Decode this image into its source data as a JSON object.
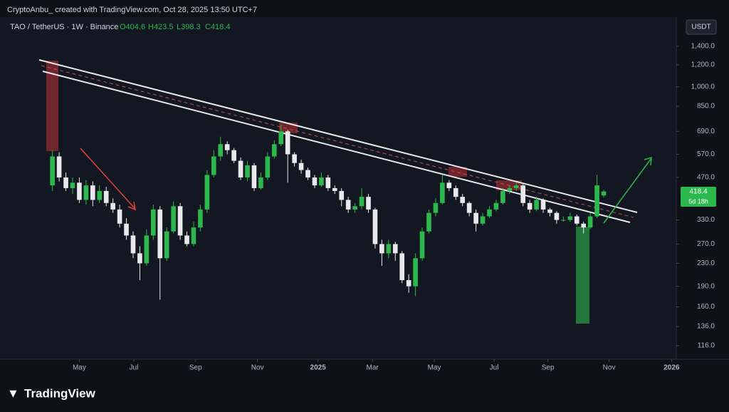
{
  "header": "CryptoAnbu_ created with TradingView.com, Oct 28, 2025 13:50 UTC+7",
  "footer_logo": "TradingView",
  "chart_data": {
    "type": "candlestick",
    "title": "TAO / TetherUS · 1W · Binance",
    "ohlc_legend": [
      "O404.6",
      "H423.5",
      "L398.3",
      "C418.4"
    ],
    "currency": "USDT",
    "price_tag": "418.4",
    "countdown": "5d 18h",
    "log_scale": true,
    "grid": false,
    "up_color": "#2db84d",
    "down_color": "#e9e9ec",
    "ylim": [
      106,
      1775
    ],
    "yticks": [
      {
        "value": 116,
        "label": "116.0"
      },
      {
        "value": 136,
        "label": "136.0"
      },
      {
        "value": 160,
        "label": "160.0"
      },
      {
        "value": 190,
        "label": "190.0"
      },
      {
        "value": 230,
        "label": "230.0"
      },
      {
        "value": 270,
        "label": "270.0"
      },
      {
        "value": 330,
        "label": "330.0"
      },
      {
        "value": 470,
        "label": "470.0"
      },
      {
        "value": 570,
        "label": "570.0"
      },
      {
        "value": 690,
        "label": "690.0"
      },
      {
        "value": 850,
        "label": "850.0"
      },
      {
        "value": 1000,
        "label": "1,000.0"
      },
      {
        "value": 1200,
        "label": "1,200.0"
      },
      {
        "value": 1400,
        "label": "1,400.0"
      }
    ],
    "xlim": [
      -7.8,
      92.8
    ],
    "xticks": [
      {
        "value": 4.0,
        "label": "May"
      },
      {
        "value": 12.1,
        "label": "Jul"
      },
      {
        "value": 21.3,
        "label": "Sep"
      },
      {
        "value": 30.5,
        "label": "Nov"
      },
      {
        "value": 39.5,
        "label": "2025"
      },
      {
        "value": 47.6,
        "label": "Mar"
      },
      {
        "value": 56.8,
        "label": "May"
      },
      {
        "value": 65.7,
        "label": "Jul"
      },
      {
        "value": 73.7,
        "label": "Sep"
      },
      {
        "value": 82.8,
        "label": "Nov"
      },
      {
        "value": 92.1,
        "label": "2026"
      }
    ],
    "open": [
      440,
      560,
      470,
      430,
      450,
      390,
      440,
      390,
      420,
      380,
      360,
      320,
      290,
      250,
      230,
      290,
      360,
      240,
      300,
      370,
      290,
      270,
      310,
      360,
      480,
      560,
      620,
      590,
      540,
      470,
      520,
      430,
      470,
      560,
      620,
      690,
      570,
      530,
      500,
      470,
      440,
      470,
      430,
      420,
      390,
      360,
      370,
      400,
      360,
      270,
      250,
      270,
      250,
      200,
      190,
      240,
      300,
      350,
      380,
      450,
      430,
      400,
      380,
      350,
      320,
      340,
      360,
      380,
      420,
      430,
      440,
      380,
      360,
      390,
      360,
      350,
      330,
      330,
      340,
      320,
      310,
      340,
      404.6
    ],
    "high": [
      590,
      580,
      490,
      470,
      470,
      460,
      455,
      440,
      435,
      395,
      375,
      335,
      300,
      265,
      305,
      375,
      370,
      310,
      385,
      380,
      300,
      325,
      375,
      500,
      590,
      660,
      635,
      600,
      555,
      540,
      530,
      490,
      580,
      640,
      730,
      700,
      580,
      545,
      510,
      480,
      490,
      480,
      440,
      430,
      400,
      380,
      430,
      410,
      365,
      280,
      280,
      275,
      255,
      210,
      250,
      310,
      360,
      395,
      480,
      460,
      440,
      410,
      385,
      360,
      350,
      370,
      390,
      430,
      440,
      450,
      445,
      390,
      400,
      395,
      365,
      355,
      340,
      350,
      345,
      325,
      350,
      480,
      423.5
    ],
    "low": [
      420,
      455,
      420,
      410,
      380,
      375,
      370,
      380,
      370,
      350,
      310,
      280,
      240,
      200,
      225,
      280,
      170,
      235,
      295,
      280,
      265,
      265,
      300,
      350,
      470,
      540,
      570,
      530,
      460,
      455,
      420,
      425,
      460,
      550,
      610,
      450,
      515,
      485,
      460,
      430,
      435,
      420,
      410,
      370,
      350,
      350,
      360,
      350,
      260,
      225,
      240,
      235,
      195,
      180,
      175,
      235,
      295,
      340,
      375,
      420,
      390,
      370,
      340,
      300,
      315,
      335,
      355,
      375,
      410,
      420,
      370,
      350,
      355,
      350,
      340,
      320,
      325,
      325,
      315,
      295,
      305,
      335,
      398.3
    ],
    "close": [
      560,
      470,
      430,
      450,
      390,
      440,
      390,
      420,
      380,
      360,
      320,
      290,
      250,
      230,
      290,
      360,
      240,
      300,
      370,
      290,
      270,
      310,
      360,
      480,
      560,
      620,
      590,
      540,
      470,
      520,
      430,
      470,
      560,
      620,
      690,
      570,
      530,
      500,
      470,
      440,
      470,
      430,
      420,
      390,
      360,
      370,
      400,
      360,
      270,
      250,
      270,
      250,
      200,
      190,
      240,
      300,
      350,
      380,
      450,
      430,
      400,
      380,
      350,
      320,
      340,
      360,
      380,
      420,
      430,
      440,
      380,
      360,
      390,
      360,
      350,
      330,
      330,
      340,
      320,
      310,
      340,
      440,
      418.4
    ]
  }
}
